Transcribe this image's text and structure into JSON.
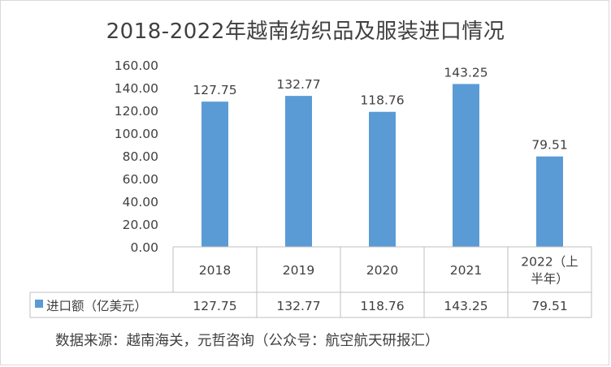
{
  "chart_data": {
    "type": "bar",
    "title": "2018-2022年越南纺织品及服装进口情况",
    "categories": [
      "2018",
      "2019",
      "2020",
      "2021",
      "2022（上半年）"
    ],
    "category_lines": [
      [
        "2018"
      ],
      [
        "2019"
      ],
      [
        "2020"
      ],
      [
        "2021"
      ],
      [
        "2022（上",
        "半年）"
      ]
    ],
    "series": [
      {
        "name": "进口额（亿美元）",
        "values": [
          127.75,
          132.77,
          118.76,
          143.25,
          79.51
        ],
        "value_labels": [
          "127.75",
          "132.77",
          "118.76",
          "143.25",
          "79.51"
        ],
        "color": "#5b9bd5"
      }
    ],
    "ylim": [
      0,
      160
    ],
    "y_ticks": [
      0,
      20,
      40,
      60,
      80,
      100,
      120,
      140,
      160
    ],
    "y_tick_labels": [
      "0.00",
      "20.00",
      "40.00",
      "60.00",
      "80.00",
      "100.00",
      "120.00",
      "140.00",
      "160.00"
    ],
    "xlabel": "",
    "ylabel": "",
    "grid": false,
    "legend": "data-table",
    "data_table": true
  },
  "source_note": "数据来源：越南海关，元哲咨询（公众号：航空航天研报汇）",
  "colors": {
    "bar": "#5b9bd5",
    "axis": "#bfbfbf",
    "text": "#404040"
  }
}
